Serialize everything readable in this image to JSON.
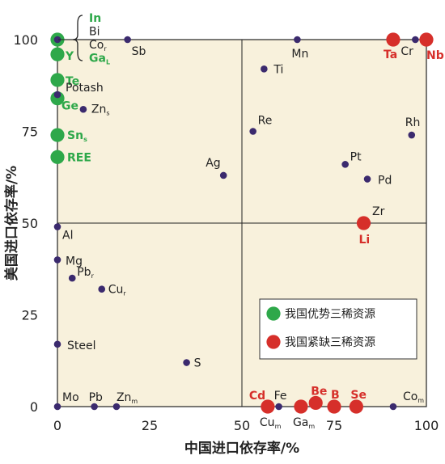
{
  "chart_data": {
    "type": "scatter",
    "title": "",
    "xlabel": "中国进口依存率/%",
    "ylabel": "美国进口依存率/%",
    "xlim": [
      0,
      100
    ],
    "ylim": [
      0,
      100
    ],
    "x_ticks": [
      "0",
      "25",
      "50",
      "75",
      "100"
    ],
    "y_ticks": [
      "0",
      "25",
      "50",
      "75",
      "100"
    ],
    "grid": false,
    "quadrant_lines": [
      50,
      50
    ],
    "legend_position": "lower-right",
    "colors": {
      "background": "#f8f1dc",
      "other": "#3b2a6e",
      "advantage": "#2ea84a",
      "shortage": "#d62f2a",
      "label_dark": "#222222"
    },
    "legend": [
      {
        "name": "我国优势三稀资源",
        "group": "advantage"
      },
      {
        "name": "我国紧缺三稀资源",
        "group": "shortage"
      }
    ],
    "points": [
      {
        "label": "Y",
        "sub": "",
        "x": 0,
        "y": 96,
        "group": "advantage"
      },
      {
        "label": "Te",
        "sub": "",
        "x": 0,
        "y": 89,
        "group": "advantage"
      },
      {
        "label": "Ge",
        "sub": "",
        "x": 0,
        "y": 84,
        "group": "advantage"
      },
      {
        "label": "Sn",
        "sub": "s",
        "x": 0,
        "y": 74,
        "group": "advantage"
      },
      {
        "label": "REE",
        "sub": "",
        "x": 0,
        "y": 68,
        "group": "advantage"
      },
      {
        "label": "",
        "sub": "",
        "x": 0,
        "y": 100,
        "group": "advantage"
      },
      {
        "label": "",
        "sub": "",
        "x": 0,
        "y": 100,
        "group": "other"
      },
      {
        "label": "Sb",
        "sub": "",
        "x": 19,
        "y": 100,
        "group": "other"
      },
      {
        "label": "Mn",
        "sub": "",
        "x": 65,
        "y": 100,
        "group": "other"
      },
      {
        "label": "Cr",
        "sub": "",
        "x": 97,
        "y": 100,
        "group": "other"
      },
      {
        "label": "Potash",
        "sub": "",
        "x": 0,
        "y": 85,
        "group": "other"
      },
      {
        "label": "Zn",
        "sub": "s",
        "x": 7,
        "y": 81,
        "group": "other"
      },
      {
        "label": "Ti",
        "sub": "",
        "x": 56,
        "y": 92,
        "group": "other"
      },
      {
        "label": "Re",
        "sub": "",
        "x": 53,
        "y": 75,
        "group": "other"
      },
      {
        "label": "Rh",
        "sub": "",
        "x": 96,
        "y": 74,
        "group": "other"
      },
      {
        "label": "Ag",
        "sub": "",
        "x": 45,
        "y": 63,
        "group": "other"
      },
      {
        "label": "Pt",
        "sub": "",
        "x": 78,
        "y": 66,
        "group": "other"
      },
      {
        "label": "Pd",
        "sub": "",
        "x": 84,
        "y": 62,
        "group": "other"
      },
      {
        "label": "Zr",
        "sub": "",
        "x": 84,
        "y": 50,
        "group": "other"
      },
      {
        "label": "Al",
        "sub": "",
        "x": 0,
        "y": 49,
        "group": "other"
      },
      {
        "label": "Mg",
        "sub": "",
        "x": 0,
        "y": 40,
        "group": "other"
      },
      {
        "label": "Pb",
        "sub": "r",
        "x": 4,
        "y": 35,
        "group": "other"
      },
      {
        "label": "Cu",
        "sub": "r",
        "x": 12,
        "y": 32,
        "group": "other"
      },
      {
        "label": "Steel",
        "sub": "",
        "x": 0,
        "y": 17,
        "group": "other"
      },
      {
        "label": "S",
        "sub": "",
        "x": 35,
        "y": 12,
        "group": "other"
      },
      {
        "label": "Mo",
        "sub": "",
        "x": 0,
        "y": 0,
        "group": "other"
      },
      {
        "label": "Pb",
        "sub": "",
        "x": 10,
        "y": 0,
        "group": "other"
      },
      {
        "label": "Zn",
        "sub": "m",
        "x": 16,
        "y": 0,
        "group": "other"
      },
      {
        "label": "Fe",
        "sub": "",
        "x": 60,
        "y": 0,
        "group": "other"
      },
      {
        "label": "Co",
        "sub": "m",
        "x": 91,
        "y": 0,
        "group": "other"
      },
      {
        "label": "Ta",
        "sub": "",
        "x": 91,
        "y": 100,
        "group": "shortage"
      },
      {
        "label": "Nb",
        "sub": "",
        "x": 100,
        "y": 100,
        "group": "shortage"
      },
      {
        "label": "Li",
        "sub": "",
        "x": 83,
        "y": 50,
        "group": "shortage"
      },
      {
        "label": "Cd",
        "sub": "",
        "x": 57,
        "y": 0,
        "group": "shortage"
      },
      {
        "label": "",
        "sub": "",
        "x": 66,
        "y": 0,
        "group": "shortage"
      },
      {
        "label": "Be",
        "sub": "",
        "x": 70,
        "y": 1,
        "group": "shortage"
      },
      {
        "label": "B",
        "sub": "",
        "x": 75,
        "y": 0,
        "group": "shortage"
      },
      {
        "label": "Se",
        "sub": "",
        "x": 81,
        "y": 0,
        "group": "shortage"
      }
    ],
    "annotations": [
      {
        "label": "Cu",
        "sub": "m",
        "x": 57,
        "y": 0
      },
      {
        "label": "Ga",
        "sub": "m",
        "x": 66,
        "y": 0
      }
    ],
    "bracket_labels": [
      {
        "label": "In",
        "sub": "",
        "group": "advantage"
      },
      {
        "label": "Bi",
        "sub": "",
        "group": "other"
      },
      {
        "label": "Co",
        "sub": "r",
        "group": "other"
      },
      {
        "label": "Ga",
        "sub": "L",
        "group": "advantage"
      }
    ]
  }
}
